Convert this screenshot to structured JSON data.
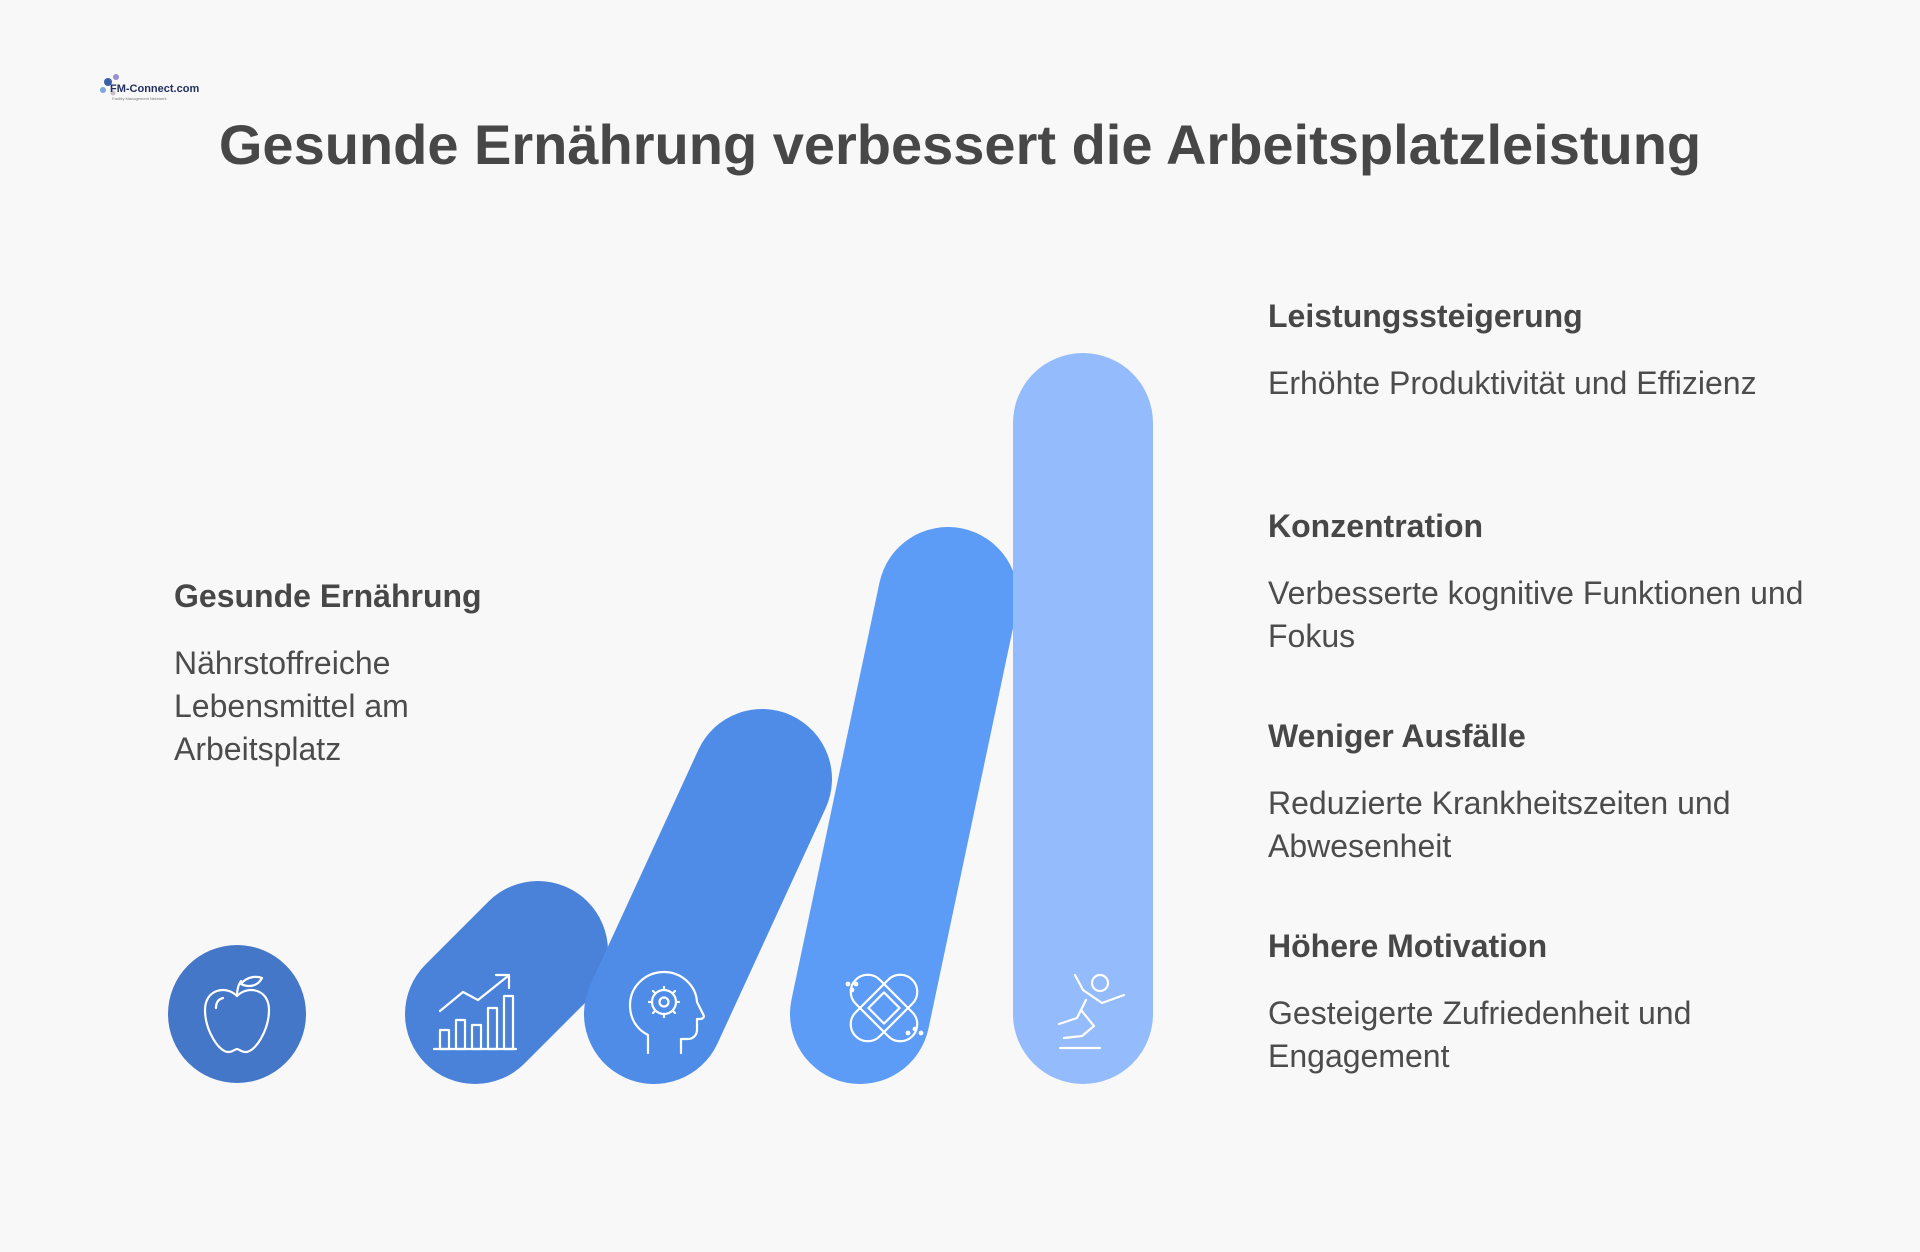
{
  "logo": {
    "text": "FM-Connect.com",
    "tagline": "Facility Management Netzwerk"
  },
  "title": "Gesunde Ernährung verbessert die Arbeitsplatzleistung",
  "start": {
    "heading": "Gesunde Ernährung",
    "description": "Nährstoffreiche Lebensmittel am Arbeitsplatz",
    "icon": "apple-icon"
  },
  "stages": [
    {
      "heading": "Leistungssteigerung",
      "description": "Erhöhte Produktivität und Effizienz",
      "icon": "growth-chart-icon"
    },
    {
      "heading": "Konzentration",
      "description": "Verbesserte kognitive Funktionen und Fokus",
      "icon": "head-gear-icon"
    },
    {
      "heading": "Weniger Ausfälle",
      "description": "Reduzierte Krankheitszeiten und Abwesenheit",
      "icon": "bandage-icon"
    },
    {
      "heading": "Höhere Motivation",
      "description": "Gesteigerte Zufriedenheit und Engagement",
      "icon": "jumping-person-icon"
    }
  ],
  "colors": {
    "apple": "#4577c9",
    "pill_1": "#4a82d9",
    "pill_2": "#4f8ce8",
    "pill_3": "#5c9bf6",
    "pill_4": "#94bbfb",
    "text": "#474747",
    "background": "#f8f8f8"
  }
}
